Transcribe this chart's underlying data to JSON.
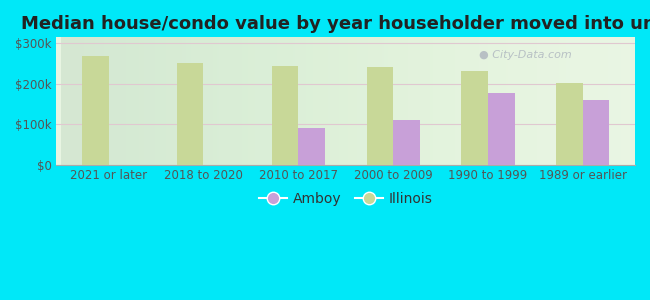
{
  "title": "Median house/condo value by year householder moved into unit",
  "categories": [
    "2021 or later",
    "2018 to 2020",
    "2010 to 2017",
    "2000 to 2009",
    "1990 to 1999",
    "1989 or earlier"
  ],
  "amboy_values": [
    null,
    null,
    92000,
    110000,
    178000,
    160000
  ],
  "illinois_values": [
    268000,
    252000,
    243000,
    241000,
    233000,
    202000
  ],
  "amboy_color": "#c8a0d8",
  "illinois_color": "#c8d898",
  "background_color": "#00e8f8",
  "plot_bg_color": "#e8f5e2",
  "ylabel_values": [
    0,
    100000,
    200000,
    300000
  ],
  "ylabel_labels": [
    "$0",
    "$100k",
    "$200k",
    "$300k"
  ],
  "ylim": [
    0,
    315000
  ],
  "bar_width": 0.28,
  "title_fontsize": 13,
  "tick_fontsize": 8.5,
  "legend_fontsize": 10,
  "watermark_text": "City-Data.com"
}
